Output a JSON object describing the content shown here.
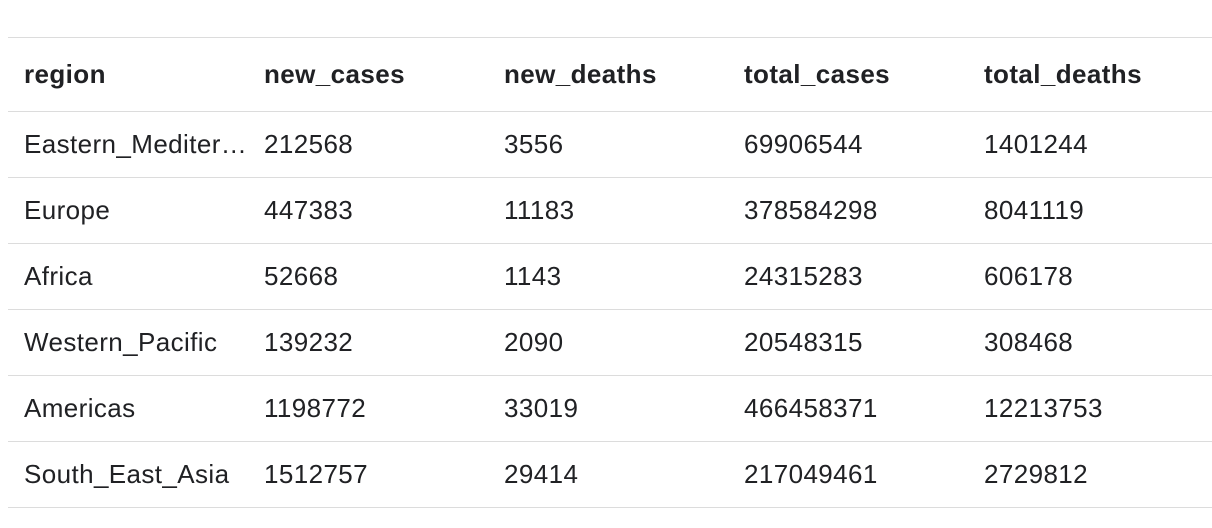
{
  "table": {
    "columns": [
      "region",
      "new_cases",
      "new_deaths",
      "total_cases",
      "total_deaths"
    ],
    "rows": [
      [
        "Eastern_Mediterranean",
        "212568",
        "3556",
        "69906544",
        "1401244"
      ],
      [
        "Europe",
        "447383",
        "11183",
        "378584298",
        "8041119"
      ],
      [
        "Africa",
        "52668",
        "1143",
        "24315283",
        "606178"
      ],
      [
        "Western_Pacific",
        "139232",
        "2090",
        "20548315",
        "308468"
      ],
      [
        "Americas",
        "1198772",
        "33019",
        "466458371",
        "12213753"
      ],
      [
        "South_East_Asia",
        "1512757",
        "29414",
        "217049461",
        "2729812"
      ]
    ]
  }
}
